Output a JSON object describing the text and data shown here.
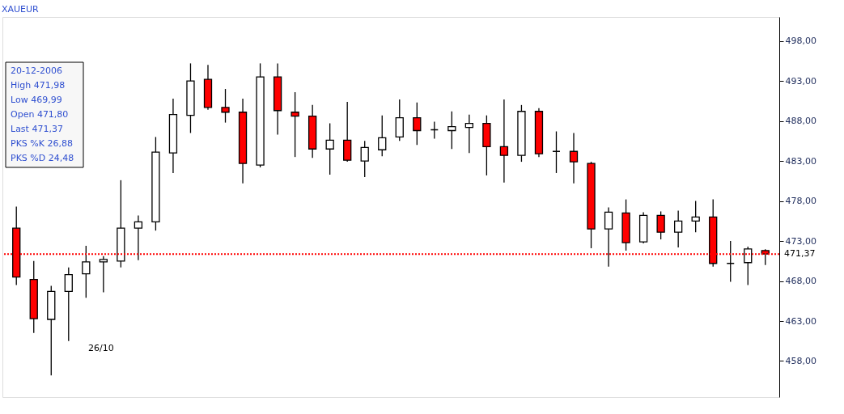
{
  "chart_data": {
    "type": "candlestick",
    "title": "XAUEUR",
    "categories": [
      null,
      null,
      null,
      null,
      null,
      null,
      null,
      null,
      null,
      null,
      null,
      null,
      null,
      null,
      null,
      null,
      null,
      null,
      null,
      null,
      null,
      null,
      null,
      null,
      null,
      null,
      null,
      null,
      null,
      null,
      null,
      null,
      null,
      null,
      null,
      null,
      null,
      null,
      null,
      null,
      null,
      null,
      null,
      null
    ],
    "ohlc": [
      [
        474.6,
        477.3,
        467.5,
        468.5
      ],
      [
        468.2,
        470.5,
        461.5,
        463.3
      ],
      [
        463.2,
        467.4,
        456.2,
        466.7
      ],
      [
        466.7,
        469.7,
        460.5,
        468.8
      ],
      [
        468.9,
        472.4,
        465.9,
        470.4
      ],
      [
        470.4,
        471.1,
        466.6,
        470.7
      ],
      [
        470.5,
        480.6,
        469.7,
        474.6
      ],
      [
        474.6,
        476.2,
        470.6,
        475.4
      ],
      [
        475.4,
        486.0,
        474.3,
        484.1
      ],
      [
        484.0,
        490.8,
        481.5,
        488.8
      ],
      [
        488.7,
        495.2,
        486.5,
        493.0
      ],
      [
        493.2,
        495.0,
        489.4,
        489.7
      ],
      [
        489.7,
        492.0,
        487.8,
        489.1
      ],
      [
        489.1,
        490.8,
        480.2,
        482.7
      ],
      [
        482.5,
        495.2,
        482.2,
        493.5
      ],
      [
        493.5,
        495.2,
        486.3,
        489.3
      ],
      [
        489.1,
        491.6,
        483.5,
        488.6
      ],
      [
        488.6,
        490.0,
        483.4,
        484.5
      ],
      [
        484.5,
        487.7,
        481.3,
        485.6
      ],
      [
        485.6,
        490.4,
        482.9,
        483.1
      ],
      [
        483.0,
        485.5,
        481.0,
        484.7
      ],
      [
        484.4,
        488.7,
        483.6,
        485.9
      ],
      [
        486.0,
        490.7,
        485.5,
        488.4
      ],
      [
        488.4,
        490.3,
        485.0,
        486.8
      ],
      [
        486.9,
        487.9,
        485.8,
        486.9
      ],
      [
        486.8,
        489.2,
        484.5,
        487.3
      ],
      [
        487.2,
        488.8,
        484.0,
        487.7
      ],
      [
        487.7,
        488.7,
        481.2,
        484.8
      ],
      [
        484.8,
        490.7,
        480.3,
        483.7
      ],
      [
        483.7,
        490.0,
        482.9,
        489.2
      ],
      [
        489.2,
        489.6,
        483.5,
        483.9
      ],
      [
        484.2,
        486.7,
        481.5,
        484.2
      ],
      [
        484.2,
        486.5,
        480.2,
        482.9
      ],
      [
        482.7,
        482.9,
        472.1,
        474.5
      ],
      [
        474.5,
        477.2,
        469.8,
        476.6
      ],
      [
        476.5,
        478.2,
        471.8,
        472.8
      ],
      [
        472.9,
        476.6,
        472.7,
        476.2
      ],
      [
        476.2,
        476.7,
        473.2,
        474.1
      ],
      [
        474.1,
        476.8,
        472.2,
        475.5
      ],
      [
        475.5,
        478.0,
        474.1,
        476.0
      ],
      [
        476.0,
        478.2,
        469.8,
        470.2
      ],
      [
        470.2,
        473.0,
        467.9,
        470.2
      ],
      [
        470.3,
        472.3,
        467.5,
        472.0
      ],
      [
        471.8,
        471.98,
        469.99,
        471.37
      ]
    ],
    "colors": [
      "#ff0000",
      "#ff0000",
      "#ffffff",
      "#ffffff",
      "#ffffff",
      "#ffffff",
      "#ffffff",
      "#ffffff",
      "#ffffff",
      "#ffffff",
      "#ffffff",
      "#ff0000",
      "#ff0000",
      "#ff0000",
      "#ffffff",
      "#ff0000",
      "#ff0000",
      "#ff0000",
      "#ffffff",
      "#ff0000",
      "#ffffff",
      "#ffffff",
      "#ffffff",
      "#ff0000",
      "#000000",
      "#ffffff",
      "#ffffff",
      "#ff0000",
      "#ff0000",
      "#ffffff",
      "#ff0000",
      "#000000",
      "#ff0000",
      "#ff0000",
      "#ffffff",
      "#ff0000",
      "#ffffff",
      "#ff0000",
      "#ffffff",
      "#ffffff",
      "#ff0000",
      "#000000",
      "#ffffff",
      "#ff0000"
    ],
    "ylim": [
      453.5,
      501
    ],
    "yticks": [
      {
        "value": 458,
        "label": "458,00"
      },
      {
        "value": 463,
        "label": "463,00"
      },
      {
        "value": 468,
        "label": "468,00"
      },
      {
        "value": 473,
        "label": "473,00"
      },
      {
        "value": 478,
        "label": "478,00"
      },
      {
        "value": 483,
        "label": "483,00"
      },
      {
        "value": 488,
        "label": "488,00"
      },
      {
        "value": 493,
        "label": "493,00"
      },
      {
        "value": 498,
        "label": "498,00"
      }
    ],
    "ref_lines": [
      {
        "axis": "y",
        "value": 471.37,
        "label": "471,37",
        "color": "#ff0000",
        "line_style": "dotted"
      }
    ],
    "annotations": [
      "20-12-2006",
      "High 471,98",
      "Low 469,99",
      "Open 471,80",
      "Last 471,37",
      "PKS %K 26,88",
      "PKS %D 24,48",
      "26/10"
    ],
    "tick_labels": "y",
    "grid": false
  }
}
